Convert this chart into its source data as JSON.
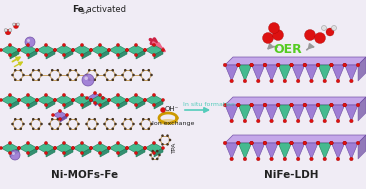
{
  "bg_color": "#f0ecf5",
  "title_left": "Ni-MOFs-Fe",
  "title_right": "NiFe-LDH",
  "label_oh": "OH⁻",
  "label_ion_exchange": "Ion exchange",
  "label_tpa": "TPA",
  "label_in_situ": "In situ formation",
  "label_oer": "OER",
  "color_teal": "#3cb88a",
  "color_teal_dark": "#1a7a55",
  "color_teal_side": "#2a8a6a",
  "color_purple_light": "#c0a0e8",
  "color_purple": "#9b78d4",
  "color_purple_dark": "#6a48a0",
  "color_purple_top": "#b898e0",
  "color_red": "#dd1111",
  "color_dark_red": "#990000",
  "color_green_oer": "#55cc22",
  "color_cyan_insitu": "#55ccbb",
  "color_dark": "#222222",
  "color_gold": "#cc9900",
  "color_yellow_arrow": "#aaaa00",
  "color_gray": "#aaaaaa",
  "color_gray_arrow": "#999999",
  "color_white": "#ffffff",
  "color_tan": "#c8a060",
  "color_dark_node": "#443322",
  "color_pink_arrow1": "#cc2244",
  "color_pink_arrow2": "#ee6688"
}
